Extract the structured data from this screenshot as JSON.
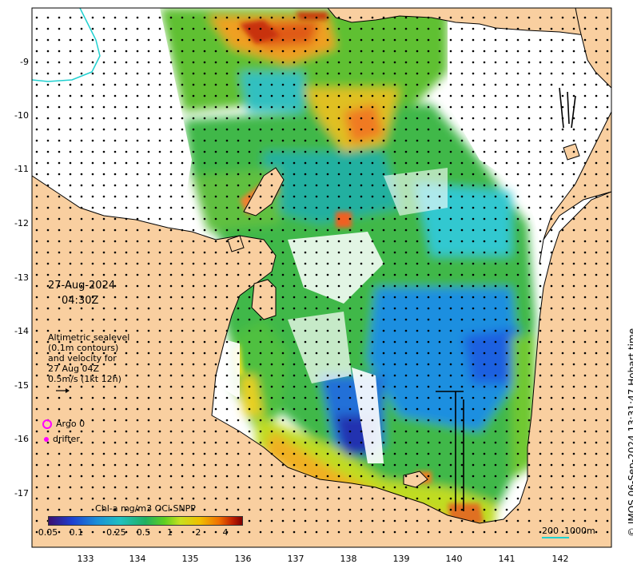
{
  "date": "27-Aug-2024",
  "time": "04:30Z",
  "altimetry_lines": [
    "Altimetric sealevel",
    "(0.1m contours)",
    "and velocity for",
    "27 Aug 04Z",
    "0.5m/s (1kt 12h)"
  ],
  "legend": {
    "argo_label": "Argo 0",
    "drifter_label": "drifter",
    "argo_color": "#ff00ff",
    "drifter_color": "#ff00ff"
  },
  "colorbar": {
    "title": "Chl-a mg/m3 OCi SNPP",
    "ticks": [
      "0.05",
      "0.1",
      "0.25",
      "0.5",
      "1",
      "2",
      "4"
    ]
  },
  "lon_ticks": [
    "133",
    "134",
    "135",
    "136",
    "137",
    "138",
    "139",
    "140",
    "141",
    "142"
  ],
  "lat_ticks": [
    "-9",
    "-10",
    "-11",
    "-12",
    "-13",
    "-14",
    "-15",
    "-16",
    "-17"
  ],
  "credit": "© IMOS 06-Sep-2024 13:31:47 Hobart time",
  "scale_label": "200  1000m",
  "colors": {
    "land": "#f9cfa0",
    "coast": "#000000",
    "deep_blue": "#1e4fd8",
    "cyan": "#20c0c0",
    "green": "#30b040",
    "yellow": "#e0e020",
    "orange": "#f08020",
    "red": "#c83010",
    "isobath": "#20d0d0"
  }
}
